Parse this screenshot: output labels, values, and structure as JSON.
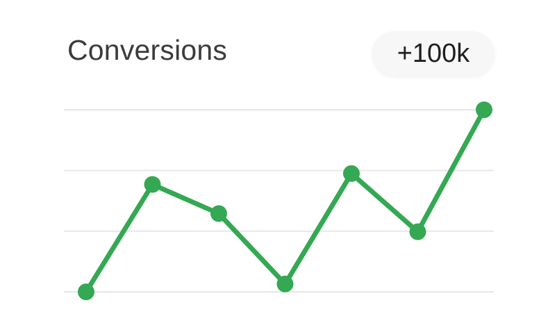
{
  "header": {
    "title": "Conversions",
    "delta_badge": "+100k"
  },
  "colors": {
    "line": "#34a853",
    "grid": "#e6e6e6",
    "title": "#3b3b3b",
    "badge_bg": "#f7f7f8"
  },
  "chart_data": {
    "type": "line",
    "x": [
      1,
      2,
      3,
      4,
      5,
      6,
      7
    ],
    "series": [
      {
        "values": [
          0.0,
          1.77,
          1.29,
          0.13,
          1.95,
          0.99,
          3.0
        ]
      }
    ],
    "ylim": [
      0,
      3
    ],
    "grid": true,
    "gridlines": 4,
    "markers": true
  }
}
